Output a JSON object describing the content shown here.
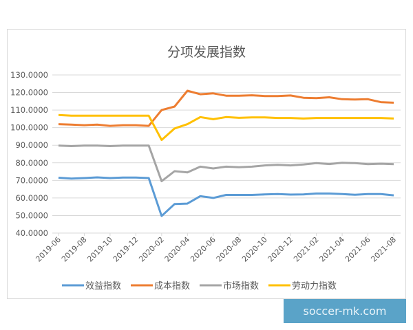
{
  "chart_data": {
    "type": "line",
    "title": "分项发展指数",
    "xlabel": "",
    "ylabel": "",
    "ylim": [
      40,
      130
    ],
    "yticks": [
      "40.0000",
      "50.0000",
      "60.0000",
      "70.0000",
      "80.0000",
      "90.0000",
      "100.0000",
      "110.0000",
      "120.0000",
      "130.0000"
    ],
    "grid": true,
    "legend": "bottom",
    "x": [
      "2019-06",
      "2019-07",
      "2019-08",
      "2019-09",
      "2019-10",
      "2019-11",
      "2019-12",
      "2020-01",
      "2020-02",
      "2020-03",
      "2020-04",
      "2020-05",
      "2020-06",
      "2020-07",
      "2020-08",
      "2020-09",
      "2020-10",
      "2020-11",
      "2020-12",
      "2021-01",
      "2021-02",
      "2021-03",
      "2021-04",
      "2021-05",
      "2021-06",
      "2021-07",
      "2021-08"
    ],
    "xtick_labels": [
      "2019-06",
      "2019-08",
      "2019-10",
      "2019-12",
      "2020-02",
      "2020-04",
      "2020-06",
      "2020-08",
      "2020-10",
      "2020-12",
      "2021-02",
      "2021-04",
      "2021-06",
      "2021-08"
    ],
    "series": [
      {
        "name": "效益指数",
        "color": "#5b9bd5",
        "values": [
          71.5,
          71,
          71.3,
          71.7,
          71.3,
          71.6,
          71.6,
          71.3,
          49.7,
          56.5,
          56.8,
          61,
          60,
          61.7,
          61.7,
          61.7,
          62,
          62.2,
          61.9,
          62,
          62.5,
          62.5,
          62.2,
          61.8,
          62.2,
          62.2,
          61.5
        ]
      },
      {
        "name": "成本指数",
        "color": "#ed7d31",
        "values": [
          102,
          101.7,
          101.4,
          101.7,
          101,
          101.4,
          101.4,
          101,
          110,
          112,
          121,
          119,
          119.5,
          118.2,
          118.2,
          118.4,
          118,
          118,
          118.3,
          117,
          116.8,
          117.3,
          116.2,
          116,
          116.2,
          114.5,
          114.2
        ]
      },
      {
        "name": "市场指数",
        "color": "#a5a5a5",
        "values": [
          89.8,
          89.5,
          89.8,
          89.8,
          89.5,
          89.8,
          89.8,
          89.8,
          69.5,
          75.2,
          74.5,
          77.8,
          76.8,
          77.8,
          77.5,
          77.8,
          78.5,
          78.8,
          78.5,
          79,
          79.8,
          79.3,
          80,
          79.8,
          79.2,
          79.5,
          79.2
        ]
      },
      {
        "name": "劳动力指数",
        "color": "#ffc000",
        "values": [
          107.2,
          106.8,
          106.8,
          106.8,
          106.8,
          106.8,
          106.8,
          106.8,
          93,
          99.5,
          102,
          106,
          104.8,
          106,
          105.6,
          105.8,
          105.8,
          105.5,
          105.5,
          105.2,
          105.5,
          105.5,
          105.5,
          105.5,
          105.5,
          105.5,
          105.2
        ]
      }
    ]
  },
  "watermark": "soccer-mk.com"
}
